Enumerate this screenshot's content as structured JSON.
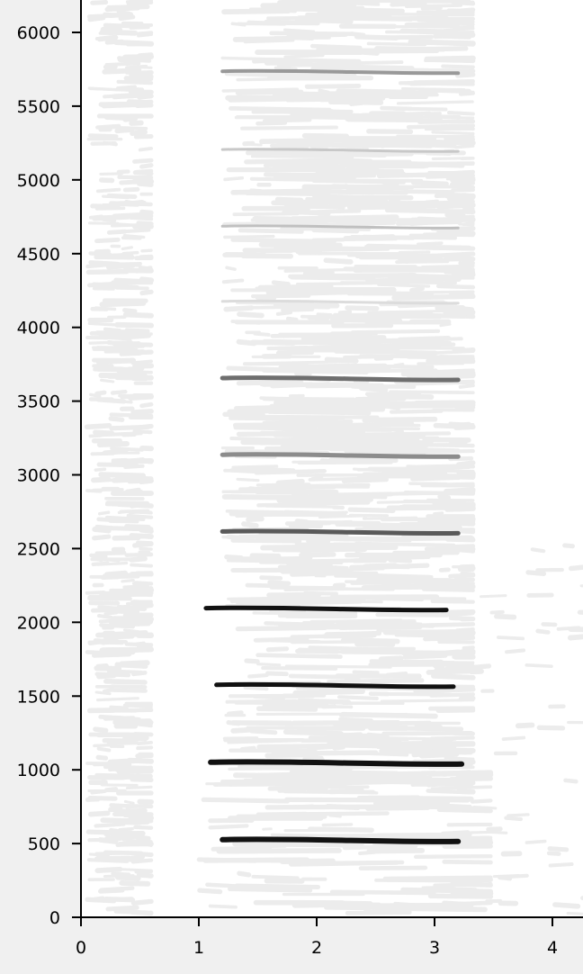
{
  "chart_data": {
    "type": "spectrogram",
    "title": "",
    "xlabel": "",
    "ylabel": "",
    "xlim": [
      0,
      4.3
    ],
    "ylim": [
      0,
      6200
    ],
    "x_ticks": [
      0,
      1,
      2,
      3,
      4
    ],
    "x_tick_labels": [
      "0",
      "1",
      "2",
      "3",
      "4"
    ],
    "y_ticks": [
      0,
      500,
      1000,
      1500,
      2000,
      2500,
      3000,
      3500,
      4000,
      4500,
      5000,
      5500,
      6000
    ],
    "y_tick_labels": [
      "0",
      "500",
      "1000",
      "1500",
      "2000",
      "2500",
      "3000",
      "3500",
      "4000",
      "4500",
      "5000",
      "5500",
      "6000"
    ],
    "grid": false,
    "legend": "none",
    "harmonics": [
      {
        "frequency": 5730,
        "t_start": 1.2,
        "t_end": 3.2,
        "color": "#999999",
        "width": 4
      },
      {
        "frequency": 5200,
        "t_start": 1.2,
        "t_end": 3.2,
        "color": "#c8c8c8",
        "width": 3
      },
      {
        "frequency": 4680,
        "t_start": 1.2,
        "t_end": 3.2,
        "color": "#c0c0c0",
        "width": 3
      },
      {
        "frequency": 4170,
        "t_start": 1.2,
        "t_end": 3.2,
        "color": "#dcdcdc",
        "width": 3
      },
      {
        "frequency": 3650,
        "t_start": 1.2,
        "t_end": 3.2,
        "color": "#6e6e6e",
        "width": 5
      },
      {
        "frequency": 3130,
        "t_start": 1.2,
        "t_end": 3.2,
        "color": "#8c8c8c",
        "width": 5
      },
      {
        "frequency": 2610,
        "t_start": 1.2,
        "t_end": 3.2,
        "color": "#5a5a5a",
        "width": 5
      },
      {
        "frequency": 2090,
        "t_start": 1.06,
        "t_end": 3.1,
        "color": "#111111",
        "width": 5
      },
      {
        "frequency": 1570,
        "t_start": 1.15,
        "t_end": 3.16,
        "color": "#111111",
        "width": 5
      },
      {
        "frequency": 1045,
        "t_start": 1.1,
        "t_end": 3.23,
        "color": "#111111",
        "width": 6
      },
      {
        "frequency": 520,
        "t_start": 1.2,
        "t_end": 3.2,
        "color": "#111111",
        "width": 6
      }
    ],
    "colors": {
      "background": "#f0f0f0",
      "plot_area": "#ffffff",
      "noise": "#ececec",
      "axis": "#000000"
    }
  }
}
